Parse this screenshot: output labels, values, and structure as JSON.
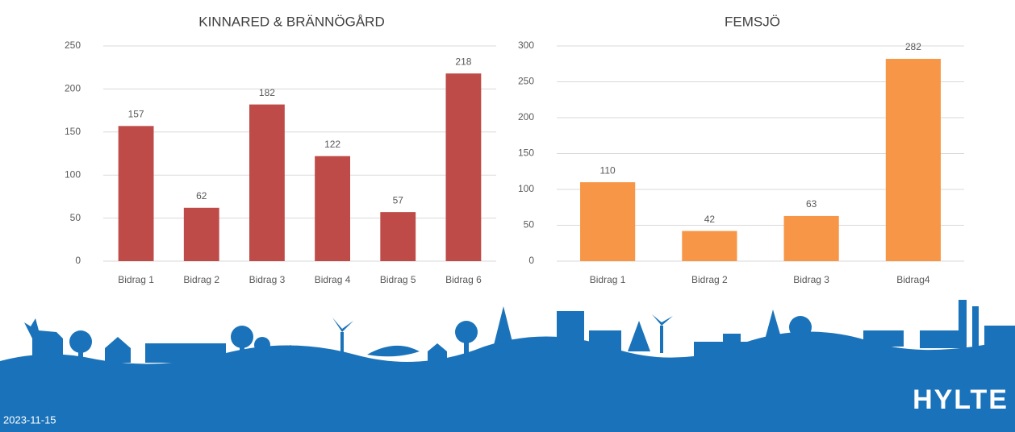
{
  "chart_data": [
    {
      "type": "bar",
      "title": "KINNARED & BRÄNNÖGÅRD",
      "categories": [
        "Bidrag 1",
        "Bidrag 2",
        "Bidrag 3",
        "Bidrag 4",
        "Bidrag 5",
        "Bidrag 6"
      ],
      "values": [
        157,
        62,
        182,
        122,
        57,
        218
      ],
      "color": "#be4b48",
      "ylim": [
        0,
        250
      ],
      "yticks": [
        0,
        50,
        100,
        150,
        200,
        250
      ],
      "grid": true,
      "data_labels": true
    },
    {
      "type": "bar",
      "title": "FEMSJÖ",
      "categories": [
        "Bidrag 1",
        "Bidrag 2",
        "Bidrag 3",
        "Bidrag4"
      ],
      "values": [
        110,
        42,
        63,
        282
      ],
      "color": "#f79646",
      "ylim": [
        0,
        300
      ],
      "yticks": [
        0,
        50,
        100,
        150,
        200,
        250,
        300
      ],
      "grid": true,
      "data_labels": true
    }
  ],
  "footer": {
    "date": "2023-11-15",
    "logo": "HYLTE"
  }
}
